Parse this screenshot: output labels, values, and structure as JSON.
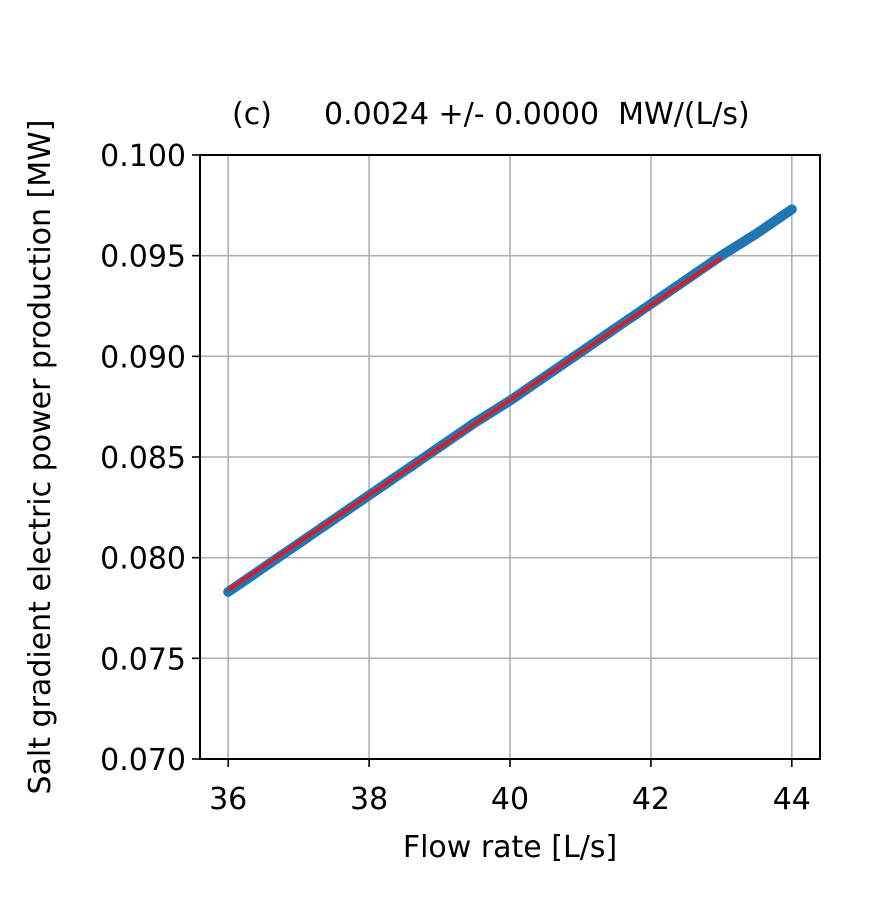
{
  "chart_data": {
    "type": "scatter",
    "title_prefix": "(c)",
    "title": "0.0024 +/- 0.0000  MW/(L/s)",
    "xlabel": "Flow rate [L/s]",
    "ylabel": "Salt gradient electric power production [MW]",
    "xlim": [
      35.6,
      44.4
    ],
    "ylim": [
      0.07,
      0.1
    ],
    "x_ticks": [
      36,
      38,
      40,
      42,
      44
    ],
    "x_tick_labels": [
      "36",
      "38",
      "40",
      "42",
      "44"
    ],
    "y_ticks": [
      0.07,
      0.075,
      0.08,
      0.085,
      0.09,
      0.095,
      0.1
    ],
    "y_tick_labels": [
      "0.070",
      "0.075",
      "0.080",
      "0.085",
      "0.090",
      "0.095",
      "0.100"
    ],
    "grid": true,
    "series": [
      {
        "kind": "scatter",
        "color": "#1f77b4",
        "x": [
          36.0,
          36.5,
          37.0,
          37.5,
          38.0,
          38.5,
          39.0,
          39.5,
          40.0,
          40.5,
          41.0,
          41.5,
          42.0,
          42.5,
          43.0,
          43.5,
          44.0
        ],
        "y": [
          0.0783,
          0.0795,
          0.0807,
          0.0819,
          0.0831,
          0.0843,
          0.0855,
          0.0867,
          0.0878,
          0.089,
          0.0902,
          0.0914,
          0.0926,
          0.0938,
          0.095,
          0.0961,
          0.0973
        ]
      },
      {
        "kind": "line",
        "color": "#e8141e",
        "x": [
          36.0,
          43.0
        ],
        "y": [
          0.0784,
          0.0949
        ]
      }
    ]
  }
}
